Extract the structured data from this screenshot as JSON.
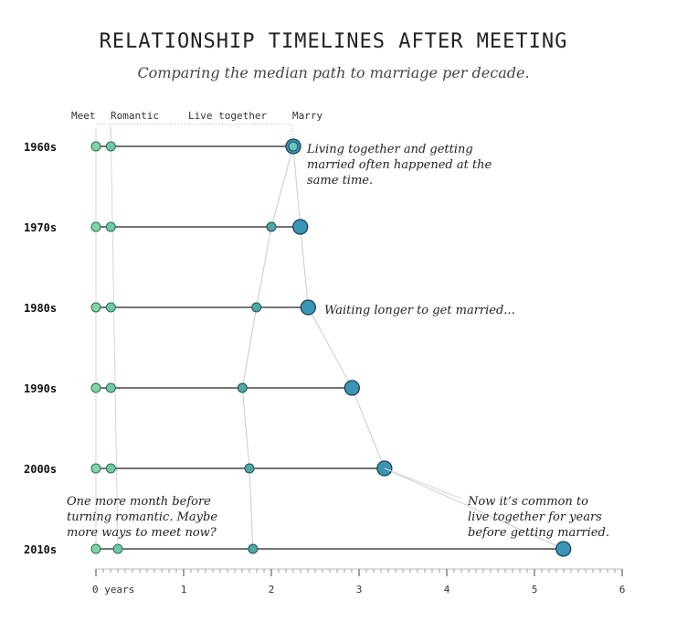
{
  "header": {
    "title": "RELATIONSHIP TIMELINES AFTER MEETING",
    "subtitle": "Comparing the median path to marriage per decade."
  },
  "colors": {
    "meet": "#7fd6a4",
    "romantic": "#6fcaa3",
    "together": "#4fa8a6",
    "marry": "#3b96b6",
    "line": "#222222",
    "connector": "#cccccc",
    "axis": "#555555"
  },
  "chart_data": {
    "type": "scatter",
    "stages": [
      "Meet",
      "Romantic",
      "Live together",
      "Marry"
    ],
    "xlim": [
      0,
      6
    ],
    "ticks": [
      {
        "value": 0,
        "label": "0 years"
      },
      {
        "value": 1,
        "label": "1"
      },
      {
        "value": 2,
        "label": "2"
      },
      {
        "value": 3,
        "label": "3"
      },
      {
        "value": 4,
        "label": "4"
      },
      {
        "value": 5,
        "label": "5"
      },
      {
        "value": 6,
        "label": "6"
      }
    ],
    "series": [
      {
        "decade": "1960s",
        "meet": 0,
        "romantic": 0.17,
        "together": 2.25,
        "marry": 2.25
      },
      {
        "decade": "1970s",
        "meet": 0,
        "romantic": 0.17,
        "together": 2.0,
        "marry": 2.33
      },
      {
        "decade": "1980s",
        "meet": 0,
        "romantic": 0.17,
        "together": 1.83,
        "marry": 2.42
      },
      {
        "decade": "1990s",
        "meet": 0,
        "romantic": 0.17,
        "together": 1.67,
        "marry": 2.92
      },
      {
        "decade": "2000s",
        "meet": 0,
        "romantic": 0.17,
        "together": 1.75,
        "marry": 3.29
      },
      {
        "decade": "2010s",
        "meet": 0,
        "romantic": 0.25,
        "together": 1.79,
        "marry": 5.33
      }
    ],
    "annotations": [
      {
        "id": "ann-1960s",
        "lines": [
          "Living together and getting",
          "married often happened at the",
          "same time."
        ]
      },
      {
        "id": "ann-1980s",
        "lines": [
          "Waiting longer to get married..."
        ]
      },
      {
        "id": "ann-2010s-left",
        "lines": [
          "One more month before",
          "turning romantic. Maybe",
          "more ways to meet now?"
        ]
      },
      {
        "id": "ann-2010s-right",
        "lines": [
          "Now it’s common to",
          "live together for years",
          "before getting married."
        ]
      }
    ]
  }
}
